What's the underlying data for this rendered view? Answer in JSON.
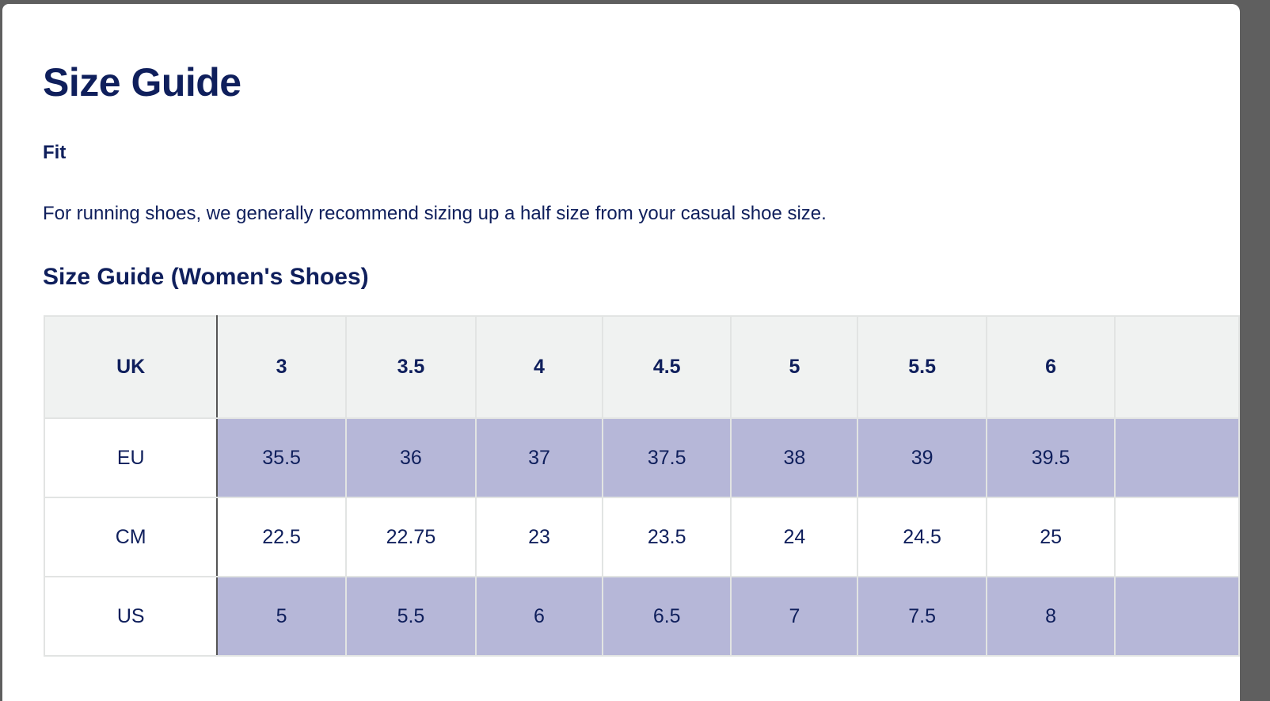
{
  "modal": {
    "title": "Size Guide",
    "fit_heading": "Fit",
    "fit_text": "For running shoes, we generally recommend sizing up a half size from your casual shoe size.",
    "table_heading": "Size Guide (Women's Shoes)"
  },
  "colors": {
    "text": "#0f1f5c",
    "header_bg": "#f0f2f1",
    "highlight_row": "#b6b7d8"
  },
  "table": {
    "header": {
      "label": "UK",
      "values": [
        "3",
        "3.5",
        "4",
        "4.5",
        "5",
        "5.5",
        "6",
        ""
      ]
    },
    "rows": [
      {
        "label": "EU",
        "values": [
          "35.5",
          "36",
          "37",
          "37.5",
          "38",
          "39",
          "39.5",
          ""
        ]
      },
      {
        "label": "CM",
        "values": [
          "22.5",
          "22.75",
          "23",
          "23.5",
          "24",
          "24.5",
          "25",
          ""
        ]
      },
      {
        "label": "US",
        "values": [
          "5",
          "5.5",
          "6",
          "6.5",
          "7",
          "7.5",
          "8",
          ""
        ]
      }
    ]
  }
}
